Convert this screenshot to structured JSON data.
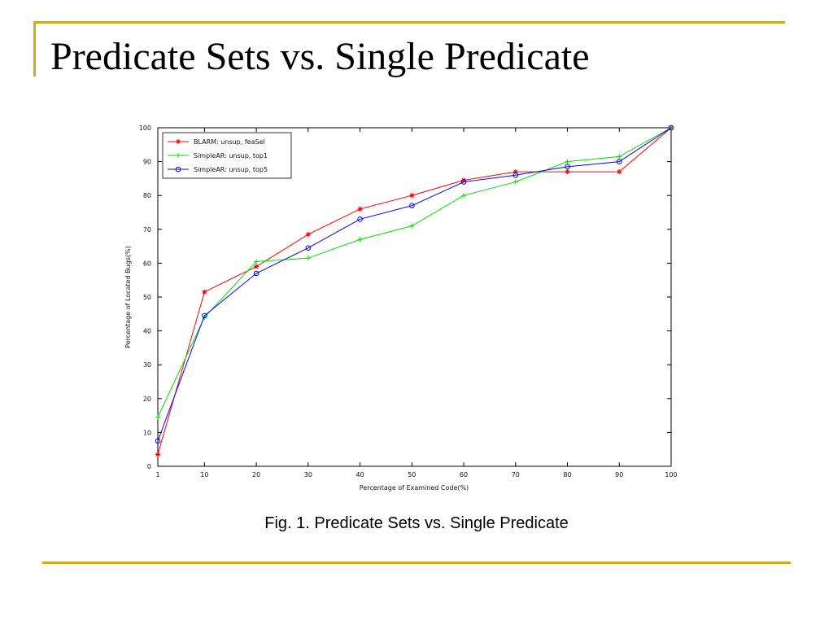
{
  "slide": {
    "title": "Predicate Sets vs. Single Predicate",
    "caption": "Fig. 1. Predicate Sets vs. Single Predicate",
    "accent_color": "#DAA520"
  },
  "chart_data": {
    "type": "line",
    "title": "",
    "xlabel": "Percentage of Examined Code(%)",
    "ylabel": "Percentage of Located Bugs(%)",
    "x": [
      1,
      10,
      20,
      30,
      40,
      50,
      60,
      70,
      80,
      90,
      100
    ],
    "xticks": [
      1,
      10,
      20,
      30,
      40,
      50,
      60,
      70,
      80,
      90,
      100
    ],
    "yticks": [
      0,
      10,
      20,
      30,
      40,
      50,
      60,
      70,
      80,
      90,
      100
    ],
    "xlim": [
      1,
      100
    ],
    "ylim": [
      0,
      100
    ],
    "grid": false,
    "legend_position": "top-left",
    "series": [
      {
        "name": "BLARM: unsup, feaSel",
        "color": "#FF0000",
        "marker": "star",
        "values": [
          3.5,
          51.5,
          59,
          68.5,
          76,
          80,
          84.5,
          87,
          87,
          87,
          100
        ]
      },
      {
        "name": "SimpleAR: unsup, top1",
        "color": "#00E000",
        "marker": "plus",
        "values": [
          14.5,
          44,
          60.5,
          61.5,
          67,
          71,
          80,
          84,
          90,
          91.5,
          100
        ]
      },
      {
        "name": "SimpleAR: unsup, top5",
        "color": "#0000FF",
        "marker": "diamond",
        "values": [
          7.5,
          44.5,
          57,
          64.5,
          73,
          77,
          84,
          86,
          88.5,
          90,
          100
        ]
      }
    ]
  }
}
